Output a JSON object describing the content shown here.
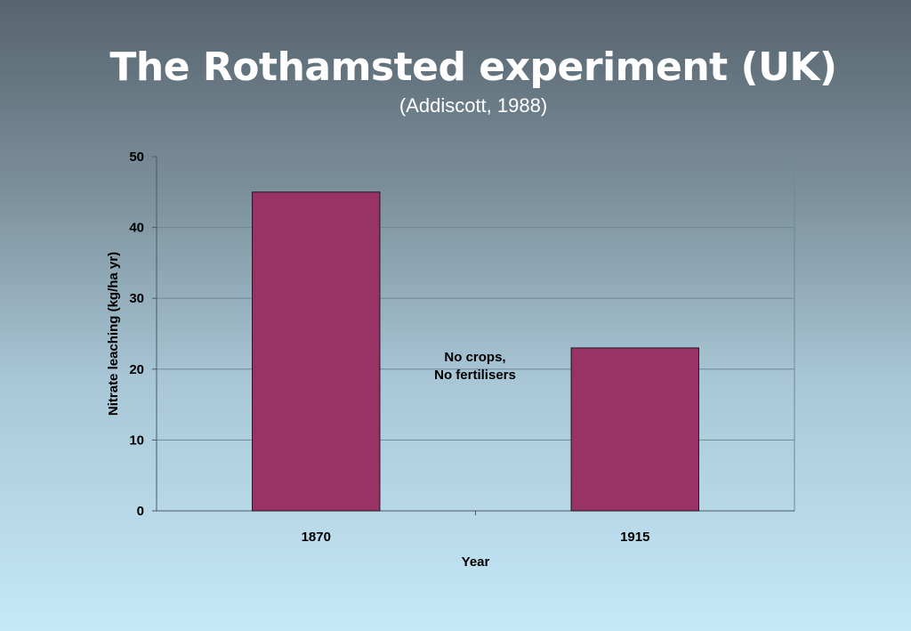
{
  "title": "The Rothamsted experiment (UK)",
  "subtitle": "(Addiscott, 1988)",
  "colors": {
    "bar": "#993366",
    "bar_stroke": "#1a1a1a",
    "gridline": "#6f8896",
    "text": "#000000"
  },
  "chart_data": {
    "type": "bar",
    "categories": [
      "1870",
      "1915"
    ],
    "values": [
      45,
      23
    ],
    "xlabel": "Year",
    "ylabel": "Nitrate leaching (kg/ha yr)",
    "ylim": [
      0,
      50
    ],
    "yticks": [
      0,
      10,
      20,
      30,
      40,
      50
    ],
    "grid": true,
    "legend": "none",
    "annotation": {
      "lines": [
        "No crops,",
        "No fertilisers"
      ]
    }
  }
}
